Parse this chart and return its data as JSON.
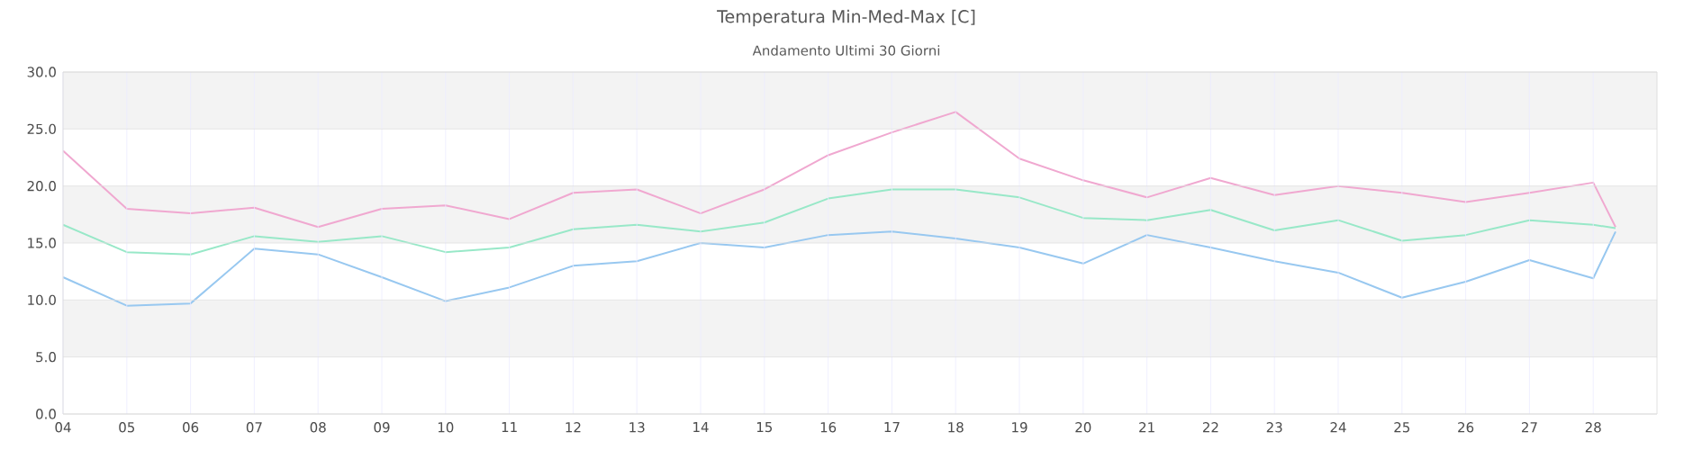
{
  "chart_data": {
    "type": "line",
    "title": "Temperatura Min-Med-Max [C]",
    "subtitle": "Andamento Ultimi 30 Giorni",
    "x": [
      4,
      5,
      6,
      7,
      8,
      9,
      10,
      11,
      12,
      13,
      14,
      15,
      16,
      17,
      18,
      19,
      20,
      21,
      22,
      23,
      24,
      25,
      26,
      27,
      28,
      28.35
    ],
    "series": [
      {
        "color": "#f0a8d0",
        "values": [
          23.1,
          18.0,
          17.6,
          18.1,
          16.4,
          18.0,
          18.3,
          17.1,
          19.4,
          19.7,
          17.6,
          19.7,
          22.7,
          24.7,
          26.5,
          22.4,
          20.5,
          19.0,
          20.7,
          19.2,
          20.0,
          19.4,
          18.6,
          19.4,
          20.3,
          16.4
        ]
      },
      {
        "color": "#98e8c8",
        "values": [
          16.6,
          14.2,
          14.0,
          15.6,
          15.1,
          15.6,
          14.2,
          14.6,
          16.2,
          16.6,
          16.0,
          16.8,
          18.9,
          19.7,
          19.7,
          19.0,
          17.2,
          17.0,
          17.9,
          16.1,
          17.0,
          15.2,
          15.7,
          17.0,
          16.6,
          16.3
        ]
      },
      {
        "color": "#98c8f0",
        "values": [
          12.0,
          9.5,
          9.7,
          14.5,
          14.0,
          12.0,
          9.9,
          11.1,
          13.0,
          13.4,
          15.0,
          14.6,
          15.7,
          16.0,
          15.4,
          14.6,
          13.2,
          15.7,
          14.6,
          13.4,
          12.4,
          10.2,
          11.6,
          13.5,
          11.9,
          16.0
        ]
      }
    ],
    "xlim": [
      4,
      29
    ],
    "xticks": [
      {
        "value": 4,
        "label": "04"
      },
      {
        "value": 5,
        "label": "05"
      },
      {
        "value": 6,
        "label": "06"
      },
      {
        "value": 7,
        "label": "07"
      },
      {
        "value": 8,
        "label": "08"
      },
      {
        "value": 9,
        "label": "09"
      },
      10,
      11,
      12,
      13,
      14,
      15,
      16,
      17,
      18,
      19,
      20,
      21,
      22,
      23,
      24,
      25,
      26,
      27,
      28
    ],
    "ylim": [
      0,
      30
    ],
    "yticks": [
      {
        "value": 0,
        "label": "0.0"
      },
      {
        "value": 5,
        "label": "5.0"
      },
      {
        "value": 10,
        "label": "10.0"
      },
      {
        "value": 15,
        "label": "15.0"
      },
      {
        "value": 20,
        "label": "20.0"
      },
      {
        "value": 25,
        "label": "25.0"
      },
      {
        "value": 30,
        "label": "30.0"
      }
    ],
    "bands": [
      {
        "axis": "y",
        "from": 5,
        "to": 10,
        "color": "#f3f3f3"
      },
      {
        "axis": "y",
        "from": 15,
        "to": 20,
        "color": "#f3f3f3"
      },
      {
        "axis": "y",
        "from": 25,
        "to": 30,
        "color": "#f3f3f3"
      }
    ],
    "grid": true,
    "marker": "none",
    "line_style": "solid"
  }
}
